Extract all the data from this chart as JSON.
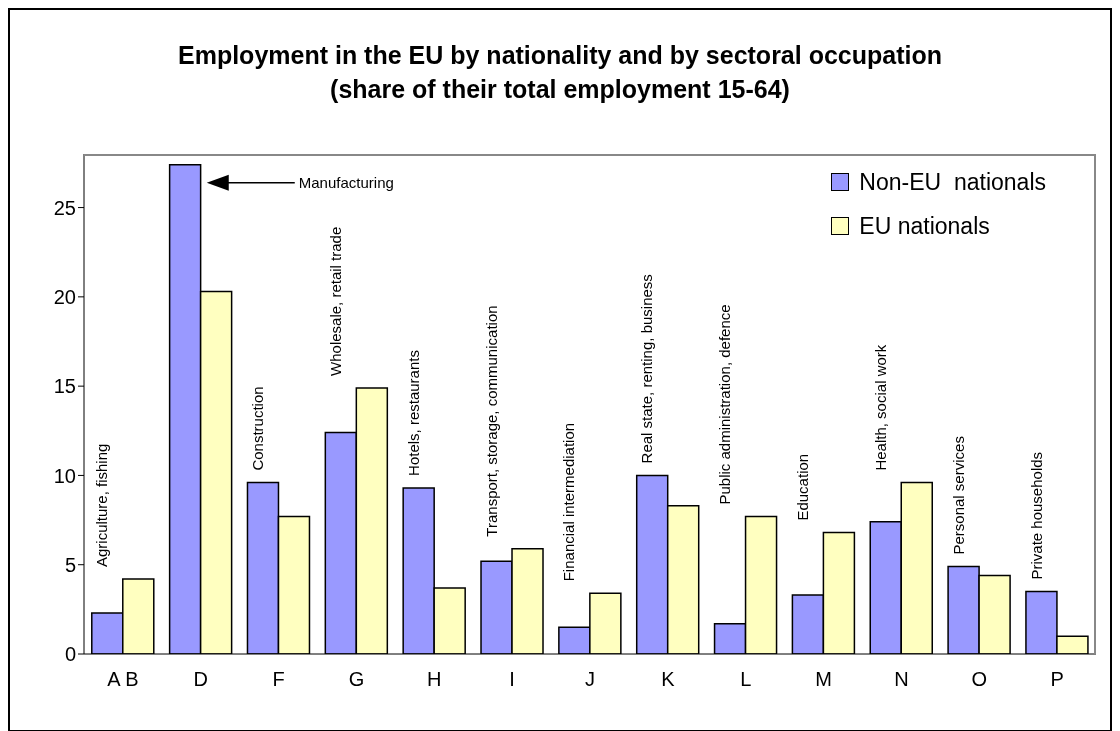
{
  "chart_data": {
    "type": "bar",
    "title": "Employment in the EU by nationality and by sectoral occupation (share of their total employment 15-64)",
    "categories": [
      "A B",
      "D",
      "F",
      "G",
      "H",
      "I",
      "J",
      "K",
      "L",
      "M",
      "N",
      "O",
      "P"
    ],
    "series": [
      {
        "name": "Non-EU  nationals",
        "color": "#9999ff",
        "values": [
          2.3,
          27.4,
          9.6,
          12.4,
          9.3,
          5.2,
          1.5,
          10.0,
          1.7,
          3.3,
          7.4,
          4.9,
          3.5
        ]
      },
      {
        "name": "EU nationals",
        "color": "#ffffc0",
        "values": [
          4.2,
          20.3,
          7.7,
          14.9,
          3.7,
          5.9,
          3.4,
          8.3,
          7.7,
          6.8,
          9.6,
          4.4,
          1.0
        ]
      }
    ],
    "ylim": [
      0,
      28
    ],
    "yticks": [
      0,
      5,
      10,
      15,
      20,
      25
    ],
    "legend": "top right",
    "annotations": [
      "Agriculture, fishing",
      "Construction",
      "Wholesale, retail trade",
      "Hotels, restaurants",
      "Transport, storage, communication",
      "Financial intermediation",
      "Real state, renting, business",
      "Public administration, defence",
      "Education",
      "Health, social work",
      "Personal services",
      "Private households",
      "Manufacturing"
    ]
  }
}
